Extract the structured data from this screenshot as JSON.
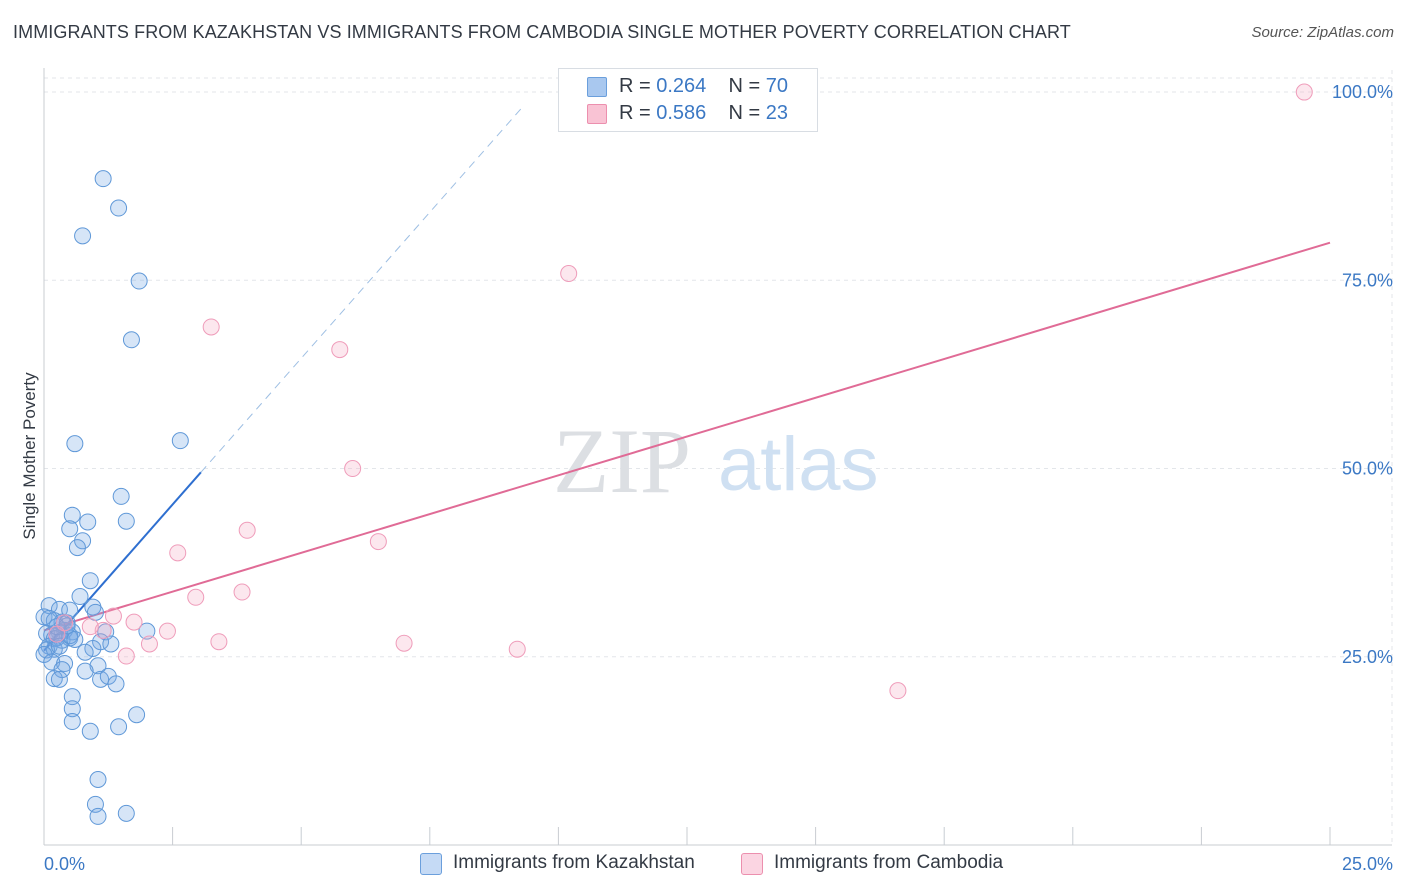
{
  "title": "IMMIGRANTS FROM KAZAKHSTAN VS IMMIGRANTS FROM CAMBODIA SINGLE MOTHER POVERTY CORRELATION CHART",
  "source": "Source: ZipAtlas.com",
  "watermark": {
    "zip": "ZIP",
    "atlas": "atlas"
  },
  "legend": {
    "rows": [
      {
        "r_label": "R =",
        "r_value": "0.264",
        "n_label": "N =",
        "n_value": "70",
        "color": "#a9c8ef",
        "border": "#6b9fdc"
      },
      {
        "r_label": "R =",
        "r_value": "0.586",
        "n_label": "N =",
        "n_value": "23",
        "color": "#f9c3d4",
        "border": "#ec8fae"
      }
    ]
  },
  "bottom_legend": {
    "kazakhstan": "Immigrants from Kazakhstan",
    "cambodia": "Immigrants from Cambodia"
  },
  "colors": {
    "kaz_fill": "rgba(120,168,230,0.30)",
    "kaz_stroke": "#5f98d8",
    "kaz_line": "#2e6fd0",
    "cam_fill": "rgba(245,170,195,0.28)",
    "cam_stroke": "#ef9cba",
    "cam_line": "#e06b96",
    "axis_label": "#3b78c4",
    "grid": "#e3e6ea"
  },
  "chart_data": {
    "type": "scatter",
    "title": "IMMIGRANTS FROM KAZAKHSTAN VS IMMIGRANTS FROM CAMBODIA SINGLE MOTHER POVERTY CORRELATION CHART",
    "xlabel": "",
    "ylabel": "Single Mother Poverty",
    "xlim": [
      0,
      25
    ],
    "ylim": [
      0,
      102
    ],
    "x_tick_labels": [
      {
        "value": 0,
        "label": "0.0%"
      },
      {
        "value": 25,
        "label": "25.0%"
      }
    ],
    "y_tick_labels": [
      {
        "value": 25,
        "label": "25.0%"
      },
      {
        "value": 50,
        "label": "50.0%"
      },
      {
        "value": 75,
        "label": "75.0%"
      },
      {
        "value": 100,
        "label": "100.0%"
      }
    ],
    "series": [
      {
        "name": "Immigrants from Kazakhstan",
        "points": [
          [
            1.15,
            88.5
          ],
          [
            1.45,
            84.6
          ],
          [
            0.75,
            80.9
          ],
          [
            1.85,
            74.9
          ],
          [
            1.7,
            67.1
          ],
          [
            2.65,
            53.7
          ],
          [
            0.6,
            53.3
          ],
          [
            1.5,
            46.3
          ],
          [
            1.6,
            43.0
          ],
          [
            0.55,
            43.8
          ],
          [
            0.85,
            42.9
          ],
          [
            0.5,
            42.0
          ],
          [
            0.75,
            40.4
          ],
          [
            0.65,
            39.5
          ],
          [
            0.9,
            35.1
          ],
          [
            0.7,
            33.0
          ],
          [
            0.1,
            31.8
          ],
          [
            0.3,
            31.3
          ],
          [
            0.5,
            31.2
          ],
          [
            0.95,
            31.6
          ],
          [
            1.0,
            30.9
          ],
          [
            0.0,
            30.3
          ],
          [
            0.2,
            29.8
          ],
          [
            0.35,
            29.6
          ],
          [
            0.45,
            29.5
          ],
          [
            0.4,
            28.5
          ],
          [
            0.55,
            28.3
          ],
          [
            0.3,
            28.2
          ],
          [
            1.2,
            28.3
          ],
          [
            2.0,
            28.4
          ],
          [
            0.05,
            28.1
          ],
          [
            0.15,
            27.9
          ],
          [
            0.2,
            27.4
          ],
          [
            0.25,
            27.5
          ],
          [
            0.35,
            27.2
          ],
          [
            0.5,
            27.5
          ],
          [
            1.1,
            27.0
          ],
          [
            1.3,
            26.7
          ],
          [
            0.1,
            26.4
          ],
          [
            0.05,
            25.9
          ],
          [
            0.2,
            26.0
          ],
          [
            0.3,
            26.4
          ],
          [
            0.95,
            26.1
          ],
          [
            0.8,
            25.6
          ],
          [
            0.0,
            25.3
          ],
          [
            0.15,
            24.3
          ],
          [
            0.4,
            24.1
          ],
          [
            1.05,
            23.8
          ],
          [
            0.35,
            23.3
          ],
          [
            0.8,
            23.1
          ],
          [
            0.2,
            22.1
          ],
          [
            0.3,
            22.0
          ],
          [
            1.1,
            22.0
          ],
          [
            1.25,
            22.4
          ],
          [
            1.4,
            21.4
          ],
          [
            0.55,
            19.7
          ],
          [
            0.55,
            18.1
          ],
          [
            1.8,
            17.3
          ],
          [
            0.55,
            16.4
          ],
          [
            0.9,
            15.1
          ],
          [
            1.45,
            15.7
          ],
          [
            0.1,
            30.1
          ],
          [
            0.25,
            29.0
          ],
          [
            0.5,
            27.8
          ],
          [
            0.6,
            27.3
          ],
          [
            1.05,
            8.7
          ],
          [
            1.0,
            5.4
          ],
          [
            1.05,
            3.8
          ],
          [
            1.6,
            4.2
          ],
          [
            0.45,
            29.1
          ]
        ]
      },
      {
        "name": "Immigrants from Cambodia",
        "points": [
          [
            24.5,
            100.0
          ],
          [
            10.2,
            75.9
          ],
          [
            3.25,
            68.8
          ],
          [
            5.75,
            65.8
          ],
          [
            6.0,
            50.0
          ],
          [
            3.95,
            41.8
          ],
          [
            6.5,
            40.3
          ],
          [
            2.6,
            38.8
          ],
          [
            3.85,
            33.6
          ],
          [
            2.95,
            32.9
          ],
          [
            1.35,
            30.4
          ],
          [
            1.75,
            29.6
          ],
          [
            2.4,
            28.4
          ],
          [
            1.15,
            28.5
          ],
          [
            3.4,
            27.0
          ],
          [
            2.05,
            26.7
          ],
          [
            7.0,
            26.8
          ],
          [
            9.2,
            26.0
          ],
          [
            1.6,
            25.1
          ],
          [
            16.6,
            20.5
          ],
          [
            0.25,
            28.0
          ],
          [
            0.9,
            29.0
          ],
          [
            0.4,
            29.5
          ]
        ]
      }
    ],
    "trend_lines": [
      {
        "series": "Immigrants from Kazakhstan",
        "style": "solid",
        "x": [
          0.0,
          3.05
        ],
        "y": [
          25.8,
          49.5
        ]
      },
      {
        "series": "Immigrants from Kazakhstan",
        "style": "dashed",
        "x": [
          3.05,
          9.3
        ],
        "y": [
          49.5,
          98.0
        ]
      },
      {
        "series": "Immigrants from Cambodia",
        "style": "solid",
        "x": [
          0.0,
          25.0
        ],
        "y": [
          28.5,
          80.0
        ]
      }
    ]
  }
}
